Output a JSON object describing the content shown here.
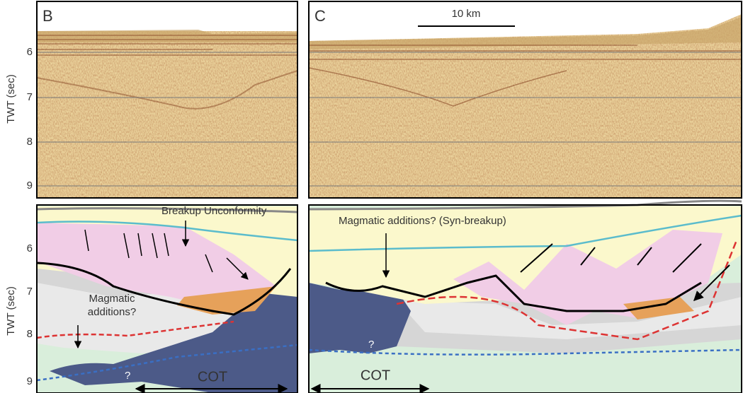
{
  "seismic_panels": [
    {
      "label": "B",
      "axis_label": "TWT (sec)",
      "ticks": [
        "6",
        "7",
        "8",
        "9"
      ]
    },
    {
      "label": "C",
      "scale_bar": "10 km"
    }
  ],
  "interpretation_panels": [
    {
      "axis_label": "TWT (sec)",
      "ticks": [
        "6",
        "7",
        "8",
        "9"
      ],
      "annotations": {
        "unconformity": "Breakup Unconformity",
        "magmatic": [
          "Magmatic",
          "additions?"
        ],
        "question": "?",
        "cot": "COT"
      }
    },
    {
      "annotations": {
        "magmatic": "Magmatic additions? (Syn-breakup)",
        "question": "?",
        "cot": "COT"
      }
    }
  ]
}
